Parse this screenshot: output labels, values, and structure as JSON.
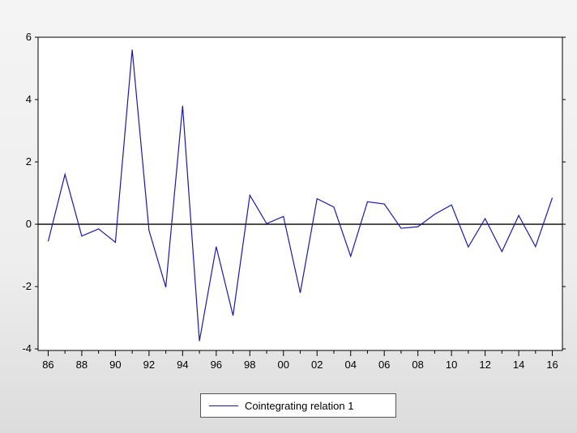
{
  "chart_data": {
    "type": "line",
    "title": "",
    "xlabel": "",
    "ylabel": "",
    "x": [
      1986,
      1987,
      1988,
      1989,
      1990,
      1991,
      1992,
      1993,
      1994,
      1995,
      1996,
      1997,
      1998,
      1999,
      2000,
      2001,
      2002,
      2003,
      2004,
      2005,
      2006,
      2007,
      2008,
      2009,
      2010,
      2011,
      2012,
      2013,
      2014,
      2015,
      2016
    ],
    "series": [
      {
        "name": "Cointegrating relation 1",
        "color": "#1a1aa8",
        "values": [
          -0.55,
          1.6,
          -0.38,
          -0.15,
          -0.58,
          5.6,
          -0.2,
          -2.02,
          3.8,
          -3.75,
          -0.72,
          -2.93,
          0.93,
          0.02,
          0.25,
          -2.2,
          0.82,
          0.55,
          -1.03,
          0.72,
          0.65,
          -0.13,
          -0.08,
          0.32,
          0.62,
          -0.73,
          0.18,
          -0.88,
          0.28,
          -0.72,
          0.85
        ]
      }
    ],
    "xlim": [
      1985.4,
      2016.6
    ],
    "ylim": [
      -4.05,
      6.0
    ],
    "yticks": [
      -4,
      -2,
      0,
      2,
      4,
      6
    ],
    "ytick_labels": [
      "-4",
      "-2",
      "0",
      "2",
      "4",
      "6"
    ],
    "xticks": [
      1986,
      1988,
      1990,
      1992,
      1994,
      1996,
      1998,
      2000,
      2002,
      2004,
      2006,
      2008,
      2010,
      2012,
      2014,
      2016
    ],
    "xtick_labels": [
      "86",
      "88",
      "90",
      "92",
      "94",
      "96",
      "98",
      "00",
      "02",
      "04",
      "06",
      "08",
      "10",
      "12",
      "14",
      "16"
    ],
    "zero_line": true,
    "grid": false,
    "legend_position": "bottom-center",
    "colors": {
      "line": "#1a1aa8",
      "axis": "#000000",
      "plot_background": "#ffffff"
    }
  }
}
